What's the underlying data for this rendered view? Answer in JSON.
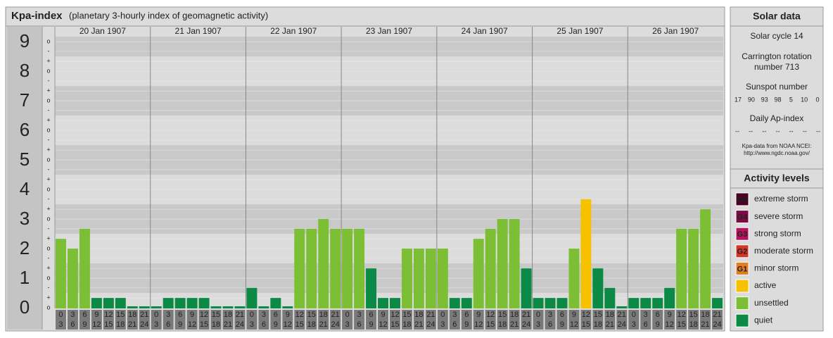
{
  "chart_data": {
    "type": "bar",
    "title": "Kpa-index",
    "subtitle": "(planetary 3-hourly index of geomagnetic activity)",
    "days": [
      "20 Jan 1907",
      "21 Jan 1907",
      "22 Jan 1907",
      "23 Jan 1907",
      "24 Jan 1907",
      "25 Jan 1907",
      "26 Jan 1907"
    ],
    "slots": [
      [
        0,
        3
      ],
      [
        3,
        6
      ],
      [
        6,
        9
      ],
      [
        9,
        12
      ],
      [
        12,
        15
      ],
      [
        15,
        18
      ],
      [
        18,
        21
      ],
      [
        21,
        24
      ]
    ],
    "values": [
      2.33,
      2,
      2.67,
      0.33,
      0.33,
      0.33,
      0,
      0,
      0,
      0.33,
      0.33,
      0.33,
      0.33,
      0,
      0,
      0,
      0.67,
      0,
      0.33,
      0,
      2.67,
      2.67,
      3,
      2.67,
      2.67,
      2.67,
      1.33,
      0.33,
      0.33,
      2,
      2,
      2,
      2,
      0.33,
      0.33,
      2.33,
      2.67,
      3,
      3,
      1.33,
      0.33,
      0.33,
      0.33,
      2,
      3.67,
      1.33,
      0.67,
      0,
      0.33,
      0.33,
      0.33,
      0.67,
      2.67,
      2.67,
      3.33,
      0.33
    ],
    "levels": [
      6,
      6,
      6,
      7,
      7,
      7,
      7,
      7,
      7,
      7,
      7,
      7,
      7,
      7,
      7,
      7,
      7,
      7,
      7,
      7,
      6,
      6,
      6,
      6,
      6,
      6,
      7,
      7,
      7,
      6,
      6,
      6,
      6,
      7,
      7,
      6,
      6,
      6,
      6,
      7,
      7,
      7,
      7,
      6,
      5,
      7,
      7,
      7,
      7,
      7,
      7,
      7,
      6,
      6,
      6,
      7
    ],
    "ylim": [
      0,
      9.17
    ],
    "yticks": [
      0,
      1,
      2,
      3,
      4,
      5,
      6,
      7,
      8,
      9
    ],
    "minor_ticks": [
      {
        "value": 0,
        "label": "o"
      },
      {
        "value": 0.33,
        "label": "+"
      },
      {
        "value": 0.67,
        "label": "-"
      },
      {
        "value": 1,
        "label": "o"
      },
      {
        "value": 1.33,
        "label": "+"
      },
      {
        "value": 1.67,
        "label": "-"
      },
      {
        "value": 2,
        "label": "o"
      },
      {
        "value": 2.33,
        "label": "+"
      },
      {
        "value": 2.67,
        "label": "-"
      },
      {
        "value": 3,
        "label": "o"
      },
      {
        "value": 3.33,
        "label": "+"
      },
      {
        "value": 3.67,
        "label": "-"
      },
      {
        "value": 4,
        "label": "o"
      },
      {
        "value": 4.33,
        "label": "+"
      },
      {
        "value": 4.67,
        "label": "-"
      },
      {
        "value": 5,
        "label": "o"
      },
      {
        "value": 5.33,
        "label": "+"
      },
      {
        "value": 5.67,
        "label": "-"
      },
      {
        "value": 6,
        "label": "o"
      },
      {
        "value": 6.33,
        "label": "+"
      },
      {
        "value": 6.67,
        "label": "-"
      },
      {
        "value": 7,
        "label": "o"
      },
      {
        "value": 7.33,
        "label": "+"
      },
      {
        "value": 7.67,
        "label": "-"
      },
      {
        "value": 8,
        "label": "o"
      },
      {
        "value": 8.33,
        "label": "+"
      },
      {
        "value": 8.67,
        "label": "-"
      },
      {
        "value": 9,
        "label": "o"
      }
    ],
    "activity_levels": [
      {
        "code": "G5",
        "name": "extreme storm",
        "color": "#4a0022"
      },
      {
        "code": "G4",
        "name": "severe storm",
        "color": "#7d0a45"
      },
      {
        "code": "G3",
        "name": "strong storm",
        "color": "#b8125e"
      },
      {
        "code": "G2",
        "name": "moderate storm",
        "color": "#d4362a"
      },
      {
        "code": "G1",
        "name": "minor storm",
        "color": "#e27d24"
      },
      {
        "name": "active",
        "color": "#f6c200"
      },
      {
        "name": "unsettled",
        "color": "#7cbf34"
      },
      {
        "name": "quiet",
        "color": "#0a8a45"
      }
    ]
  },
  "solar_data": {
    "title": "Solar data",
    "cycle": "Solar cycle 14",
    "carrington": [
      "Carrington rotation",
      "number 713"
    ],
    "sunspot_label": "Sunspot number",
    "sunspots": [
      17,
      90,
      93,
      98,
      5,
      10,
      0
    ],
    "ap_label": "Daily Ap-index",
    "ap": [
      "--",
      "--",
      "--",
      "--",
      "--",
      "--",
      "--"
    ],
    "source": [
      "Kpa-data from NOAA NCEI:",
      "http://www.ngdc.noaa.gov/"
    ]
  },
  "activity_title": "Activity levels"
}
